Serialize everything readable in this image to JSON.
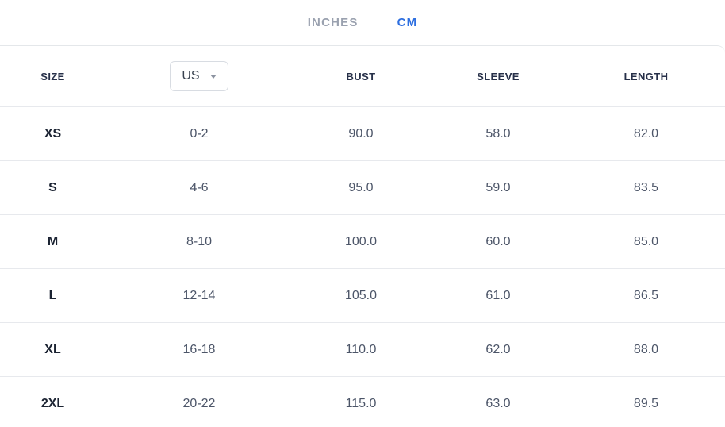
{
  "unit_tabs": {
    "inches_label": "INCHES",
    "cm_label": "CM",
    "active": "CM"
  },
  "table": {
    "columns": [
      "SIZE",
      "US",
      "BUST",
      "SLEEVE",
      "LENGTH"
    ],
    "region_selector": {
      "value": "US"
    },
    "rows": [
      {
        "size": "XS",
        "us": "0-2",
        "bust": "90.0",
        "sleeve": "58.0",
        "length": "82.0"
      },
      {
        "size": "S",
        "us": "4-6",
        "bust": "95.0",
        "sleeve": "59.0",
        "length": "83.5"
      },
      {
        "size": "M",
        "us": "8-10",
        "bust": "100.0",
        "sleeve": "60.0",
        "length": "85.0"
      },
      {
        "size": "L",
        "us": "12-14",
        "bust": "105.0",
        "sleeve": "61.0",
        "length": "86.5"
      },
      {
        "size": "XL",
        "us": "16-18",
        "bust": "110.0",
        "sleeve": "62.0",
        "length": "88.0"
      },
      {
        "size": "2XL",
        "us": "20-22",
        "bust": "115.0",
        "sleeve": "63.0",
        "length": "89.5"
      }
    ]
  },
  "colors": {
    "accent-blue": "#2e6fe0",
    "inactive-tab": "#9aa1af",
    "header-text": "#273049",
    "size-text": "#1b2332",
    "value-text": "#4c5568",
    "border": "#e7e9ed",
    "button-border": "#d8dce2",
    "caret": "#8b92a0"
  }
}
